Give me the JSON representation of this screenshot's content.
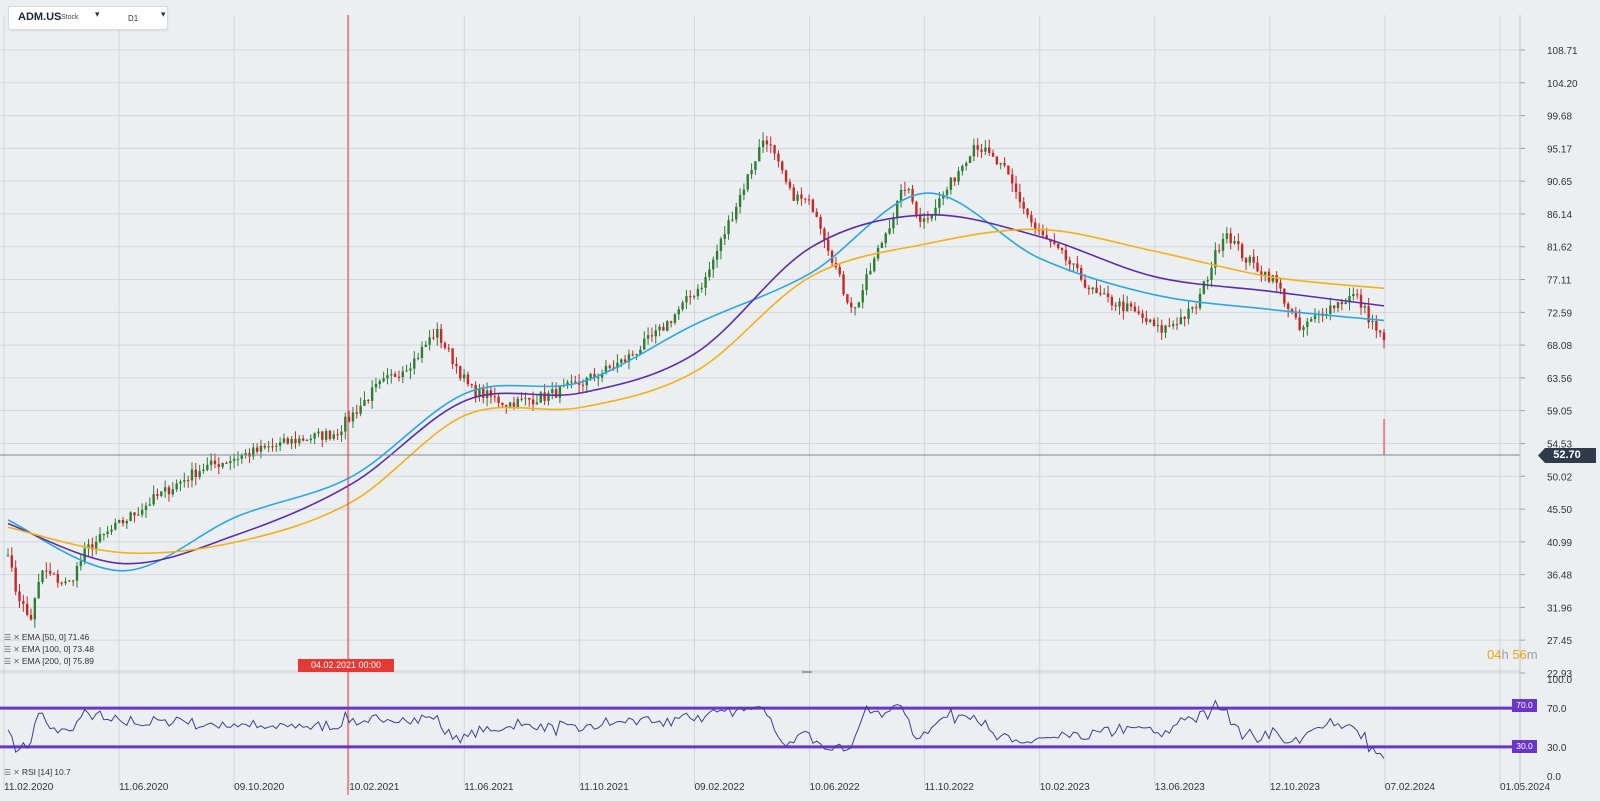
{
  "symbol": {
    "name": "ADM.US",
    "type": "Stock",
    "timeframe": "D1"
  },
  "colors": {
    "bg": "#eceff1",
    "up": "#2e7d32",
    "down": "#c62828",
    "ema50": "#29a8e0",
    "ema100": "#5b2ea6",
    "ema200": "#f4b01b",
    "crosshair": "#e53935",
    "rsi": "#3b3f8f",
    "rsi_level": "#6a35c9",
    "grid": "#d3d7dc",
    "price_line": "#7d8893"
  },
  "price_axis": {
    "ticks": [
      "108.71",
      "104.20",
      "99.68",
      "95.17",
      "90.65",
      "86.14",
      "81.62",
      "77.11",
      "72.59",
      "68.08",
      "63.56",
      "59.05",
      "54.53",
      "50.02",
      "45.50",
      "40.99",
      "36.48",
      "31.96",
      "27.45",
      "22.93"
    ],
    "min": 22.93,
    "max": 108.71
  },
  "current_price": {
    "value": 52.7,
    "label": "52.70"
  },
  "time_axis": {
    "labels": [
      "11.02.2020",
      "11.06.2020",
      "09.10.2020",
      "10.02.2021",
      "11.06.2021",
      "11.10.2021",
      "09.02.2022",
      "10.06.2022",
      "11.10.2022",
      "10.02.2023",
      "13.06.2023",
      "12.10.2023",
      "07.02.2024",
      "01.05.2024"
    ]
  },
  "crosshair": {
    "label": "04.02.2021 00:00"
  },
  "legend": [
    {
      "label": "EMA",
      "params": "[50, 0]",
      "value": "71.46"
    },
    {
      "label": "EMA",
      "params": "[100, 0]",
      "value": "73.48"
    },
    {
      "label": "EMA",
      "params": "[200, 0]",
      "value": "75.89"
    }
  ],
  "countdown": {
    "hours": "04",
    "h": "h",
    "minutes": "56",
    "m": "m"
  },
  "rsi": {
    "label": "RSI",
    "params": "[14]",
    "value": "10.7",
    "axis_ticks": [
      "100.0",
      "70.0",
      "30.0",
      "0.0"
    ],
    "levels": [
      "70.0",
      "30.0"
    ]
  },
  "chart_data": {
    "type": "line",
    "x": [
      "11.02.2020",
      "11.06.2020",
      "09.10.2020",
      "10.02.2021",
      "11.06.2021",
      "11.10.2021",
      "09.02.2022",
      "10.06.2022",
      "11.10.2022",
      "10.02.2023",
      "13.06.2023",
      "12.10.2023",
      "31.12.2023"
    ],
    "series": [
      {
        "name": "EMA [50, 0]",
        "values": [
          44.0,
          37.0,
          44.5,
          50.0,
          61.5,
          63.0,
          71.0,
          78.0,
          89.0,
          80.0,
          75.0,
          73.0,
          71.46
        ]
      },
      {
        "name": "EMA [100, 0]",
        "values": [
          43.5,
          38.0,
          42.0,
          49.0,
          60.5,
          61.5,
          67.0,
          81.5,
          86.0,
          83.0,
          77.5,
          75.5,
          73.48
        ]
      },
      {
        "name": "EMA [200, 0]",
        "values": [
          43.0,
          39.5,
          41.0,
          46.5,
          58.5,
          59.5,
          64.5,
          77.5,
          82.0,
          84.0,
          81.0,
          77.5,
          75.89
        ]
      }
    ],
    "ylim": [
      22.93,
      108.71
    ]
  }
}
